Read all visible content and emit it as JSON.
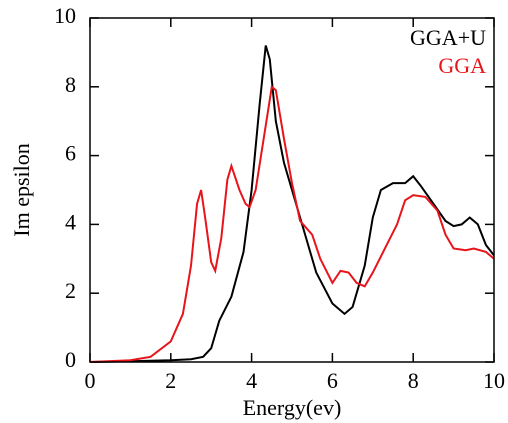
{
  "chart_data": {
    "type": "line",
    "xlabel": "Energy(ev)",
    "ylabel": "Im epsilon",
    "xlim": [
      0,
      10
    ],
    "ylim": [
      0,
      10
    ],
    "xticks": [
      0,
      2,
      4,
      6,
      8,
      10
    ],
    "yticks": [
      0,
      2,
      4,
      6,
      8,
      10
    ],
    "legend": "upper right",
    "series": [
      {
        "name": "GGA+U",
        "color": "#000000",
        "x": [
          0,
          1,
          2,
          2.5,
          2.8,
          3.0,
          3.2,
          3.5,
          3.8,
          4.0,
          4.2,
          4.35,
          4.45,
          4.6,
          4.8,
          5.0,
          5.3,
          5.6,
          6.0,
          6.3,
          6.5,
          6.8,
          7.0,
          7.2,
          7.5,
          7.8,
          8.0,
          8.2,
          8.5,
          8.8,
          9.0,
          9.2,
          9.4,
          9.6,
          9.8,
          10.0
        ],
        "values": [
          0,
          0.02,
          0.05,
          0.08,
          0.15,
          0.4,
          1.2,
          1.9,
          3.2,
          5.0,
          7.5,
          9.2,
          8.8,
          7.0,
          5.8,
          5.0,
          3.8,
          2.6,
          1.7,
          1.4,
          1.6,
          2.8,
          4.2,
          5.0,
          5.2,
          5.2,
          5.4,
          5.1,
          4.6,
          4.1,
          3.95,
          4.0,
          4.2,
          4.0,
          3.4,
          3.1
        ]
      },
      {
        "name": "GGA",
        "color": "#e8141b",
        "x": [
          0,
          1,
          1.5,
          2.0,
          2.3,
          2.5,
          2.65,
          2.75,
          2.85,
          3.0,
          3.1,
          3.25,
          3.4,
          3.5,
          3.7,
          3.85,
          3.95,
          4.1,
          4.3,
          4.5,
          4.6,
          4.8,
          5.0,
          5.2,
          5.5,
          5.7,
          6.0,
          6.2,
          6.4,
          6.6,
          6.8,
          7.0,
          7.3,
          7.6,
          7.8,
          8.0,
          8.3,
          8.6,
          8.8,
          9.0,
          9.3,
          9.5,
          9.8,
          10
        ],
        "values": [
          0,
          0.05,
          0.15,
          0.6,
          1.4,
          2.8,
          4.6,
          5.0,
          4.2,
          2.9,
          2.65,
          3.6,
          5.3,
          5.7,
          5.0,
          4.6,
          4.5,
          5.0,
          6.5,
          8.0,
          7.9,
          6.5,
          5.2,
          4.1,
          3.7,
          3.0,
          2.3,
          2.65,
          2.6,
          2.3,
          2.2,
          2.6,
          3.3,
          4.0,
          4.7,
          4.85,
          4.8,
          4.4,
          3.7,
          3.3,
          3.25,
          3.3,
          3.2,
          3.0
        ]
      }
    ]
  }
}
